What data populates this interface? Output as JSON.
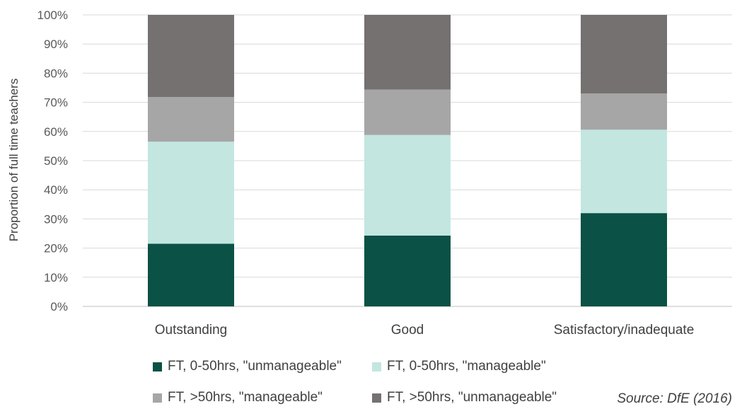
{
  "chart_data": {
    "type": "stacked-bar",
    "ylabel": "Proportion of full time teachers",
    "ylim": [
      0,
      100
    ],
    "yticks": [
      "0%",
      "10%",
      "20%",
      "30%",
      "40%",
      "50%",
      "60%",
      "70%",
      "80%",
      "90%",
      "100%"
    ],
    "categories": [
      "Outstanding",
      "Good",
      "Satisfactory/inadequate"
    ],
    "series": [
      {
        "name": "FT, 0-50hrs, \"unmanageable\"",
        "color": "#0b5145",
        "values": [
          21.5,
          24.3,
          32.0
        ]
      },
      {
        "name": "FT, 0-50hrs, \"manageable\"",
        "color": "#c3e6e0",
        "values": [
          35.0,
          34.5,
          28.6
        ]
      },
      {
        "name": "FT, >50hrs, \"manageable\"",
        "color": "#a6a6a6",
        "values": [
          15.3,
          15.6,
          12.4
        ]
      },
      {
        "name": "FT, >50hrs, \"unmanageable\"",
        "color": "#767171",
        "values": [
          28.2,
          25.6,
          27.0
        ]
      }
    ],
    "grid": true,
    "legend_position": "bottom",
    "source": "Source: DfE (2016)"
  }
}
